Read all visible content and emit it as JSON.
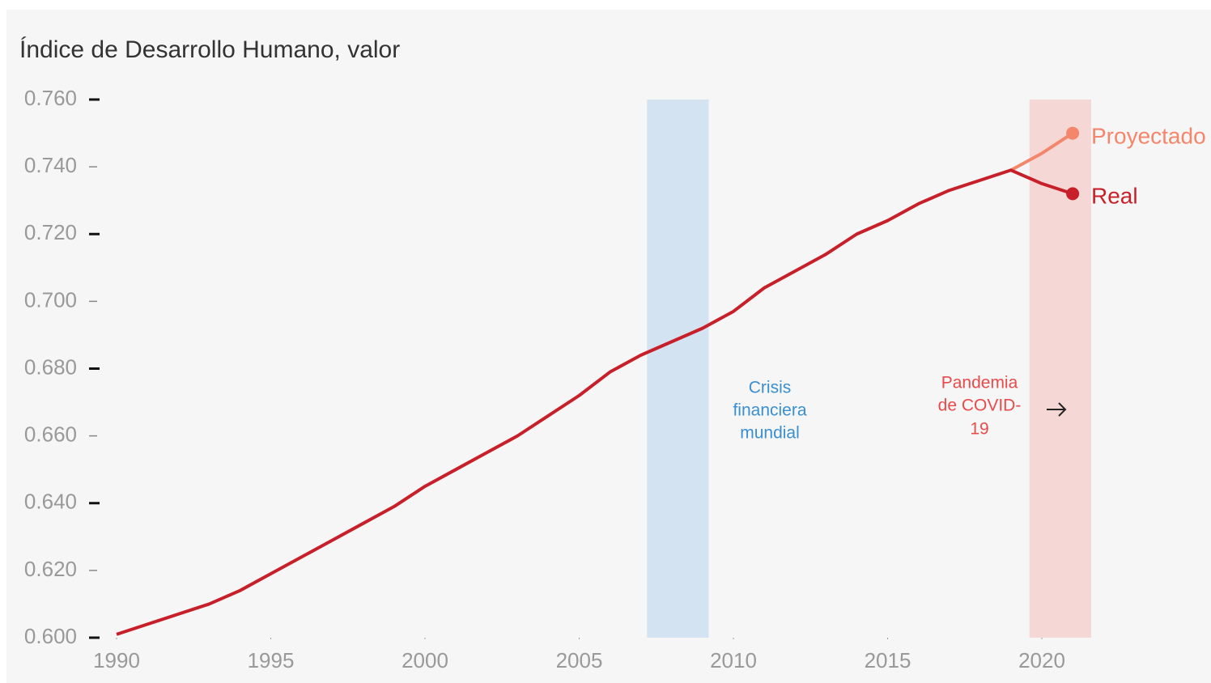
{
  "chart_data": {
    "type": "line",
    "title": "Índice de Desarrollo Humano, valor",
    "x": [
      1990,
      1991,
      1992,
      1993,
      1994,
      1995,
      1996,
      1997,
      1998,
      1999,
      2000,
      2001,
      2002,
      2003,
      2004,
      2005,
      2006,
      2007,
      2008,
      2009,
      2010,
      2011,
      2012,
      2013,
      2014,
      2015,
      2016,
      2017,
      2018,
      2019,
      2020,
      2021
    ],
    "series": [
      {
        "name": "Proyectado",
        "color": "#f4866b",
        "values": [
          null,
          null,
          null,
          null,
          null,
          null,
          null,
          null,
          null,
          null,
          null,
          null,
          null,
          null,
          null,
          null,
          null,
          null,
          null,
          null,
          null,
          null,
          null,
          null,
          null,
          null,
          null,
          null,
          null,
          0.739,
          0.744,
          0.75
        ]
      },
      {
        "name": "Real",
        "color": "#c8202a",
        "values": [
          0.601,
          0.604,
          0.607,
          0.61,
          0.614,
          0.619,
          0.624,
          0.629,
          0.634,
          0.639,
          0.645,
          0.65,
          0.655,
          0.66,
          0.666,
          0.672,
          0.679,
          0.684,
          0.688,
          0.692,
          0.697,
          0.704,
          0.709,
          0.714,
          0.72,
          0.724,
          0.729,
          0.733,
          0.736,
          0.739,
          0.735,
          0.732
        ]
      }
    ],
    "xlim": [
      1990,
      2020
    ],
    "xticks": [
      1990,
      1995,
      2000,
      2005,
      2010,
      2015,
      2020
    ],
    "ylim": [
      0.6,
      0.76
    ],
    "yticks": [
      {
        "value": 0.6,
        "label": "0.600"
      },
      {
        "value": 0.62,
        "label": "0.620"
      },
      {
        "value": 0.64,
        "label": "0.640"
      },
      {
        "value": 0.66,
        "label": "0.660"
      },
      {
        "value": 0.68,
        "label": "0.680"
      },
      {
        "value": 0.7,
        "label": "0.700"
      },
      {
        "value": 0.72,
        "label": "0.720"
      },
      {
        "value": 0.74,
        "label": "0.740"
      },
      {
        "value": 0.76,
        "label": "0.760"
      }
    ],
    "bands": [
      {
        "start": 2007.2,
        "end": 2009.2,
        "color": "#d3e3f1",
        "text_color": "#3a8fd0",
        "label": [
          "Crisis",
          "financiera",
          "mundial"
        ]
      },
      {
        "start": 2019.6,
        "end": 2021.6,
        "color": "#f5d8d6",
        "text_color": "#e94a4a",
        "label": [
          "Pandemia",
          "de COVID-",
          "19"
        ]
      }
    ]
  }
}
